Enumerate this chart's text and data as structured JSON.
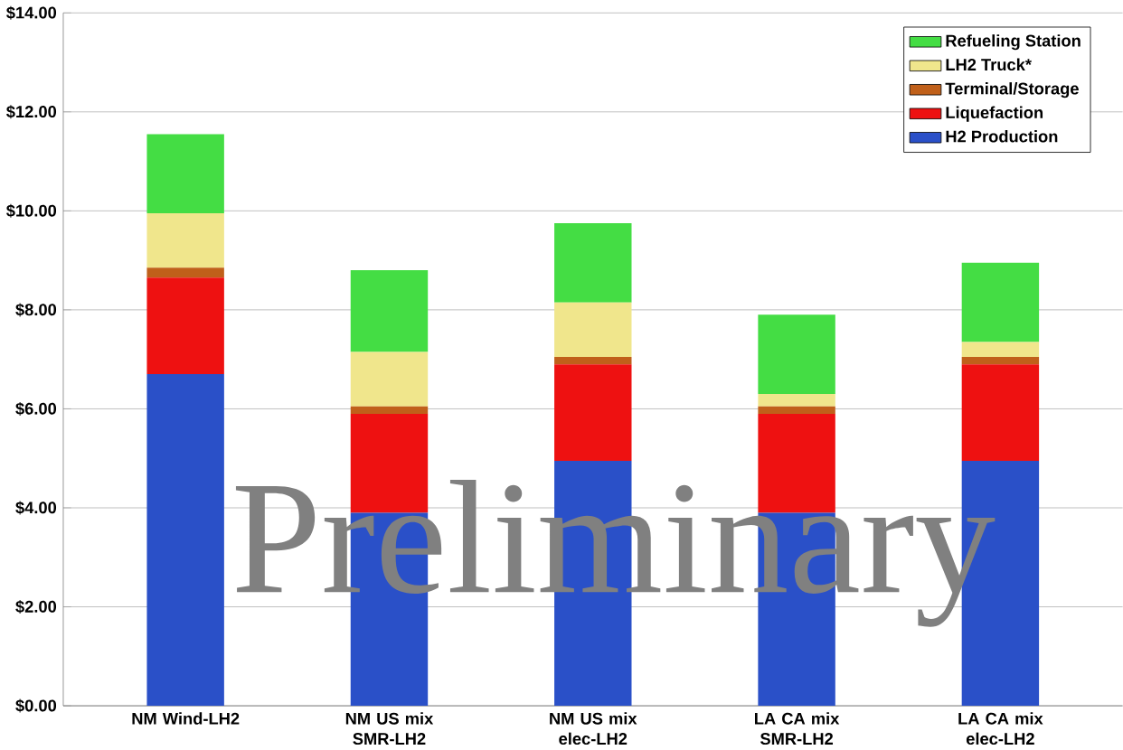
{
  "chart_data": {
    "type": "bar",
    "stacked": true,
    "categories": [
      "NM Wind-LH2",
      "NM US mix SMR-LH2",
      "NM US mix elec-LH2",
      "LA CA mix SMR-LH2",
      "LA CA mix elec-LH2"
    ],
    "series": [
      {
        "name": "H2 Production",
        "color": "#2a50c8",
        "values": [
          6.7,
          3.9,
          4.95,
          3.9,
          4.95
        ]
      },
      {
        "name": "Liquefaction",
        "color": "#ee1111",
        "values": [
          1.95,
          2.0,
          1.95,
          2.0,
          1.95
        ]
      },
      {
        "name": "Terminal/Storage",
        "color": "#c0601a",
        "values": [
          0.2,
          0.15,
          0.15,
          0.15,
          0.15
        ]
      },
      {
        "name": "LH2 Truck*",
        "color": "#f0e68c",
        "values": [
          1.1,
          1.1,
          1.1,
          0.25,
          0.3
        ]
      },
      {
        "name": "Refueling Station",
        "color": "#44dd44",
        "values": [
          1.6,
          1.65,
          1.6,
          1.6,
          1.6
        ]
      }
    ],
    "ylim": [
      0,
      14
    ],
    "yticks": [
      {
        "value": 0,
        "label": "$0.00"
      },
      {
        "value": 2,
        "label": "$2.00"
      },
      {
        "value": 4,
        "label": "$4.00"
      },
      {
        "value": 6,
        "label": "$6.00"
      },
      {
        "value": 8,
        "label": "$8.00"
      },
      {
        "value": 10,
        "label": "$10.00"
      },
      {
        "value": 12,
        "label": "$12.00"
      },
      {
        "value": 14,
        "label": "$14.00"
      }
    ],
    "grid": "y",
    "legend": "top right",
    "annotations": [
      "Preliminary"
    ]
  }
}
